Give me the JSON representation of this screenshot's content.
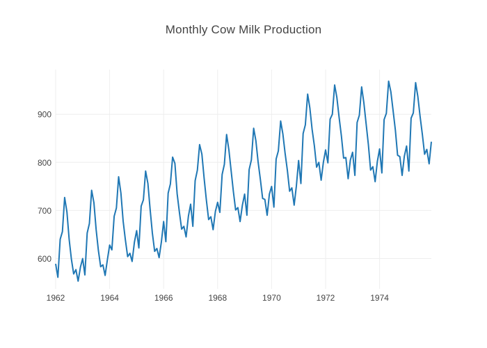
{
  "chart_data": {
    "type": "line",
    "title": "Monthly Cow Milk Production",
    "xlabel": "",
    "ylabel": "",
    "x_start": "1962-01",
    "x_end": "1975-12",
    "xlim_months": [
      0,
      167
    ],
    "ylim": [
      537,
      993
    ],
    "grid": true,
    "legend": false,
    "x_ticks": [
      {
        "label": "1962",
        "month": 0
      },
      {
        "label": "1964",
        "month": 24
      },
      {
        "label": "1966",
        "month": 48
      },
      {
        "label": "1968",
        "month": 72
      },
      {
        "label": "1970",
        "month": 96
      },
      {
        "label": "1972",
        "month": 120
      },
      {
        "label": "1974",
        "month": 144
      }
    ],
    "y_ticks": [
      {
        "label": "600",
        "value": 600
      },
      {
        "label": "700",
        "value": 700
      },
      {
        "label": "800",
        "value": 800
      },
      {
        "label": "900",
        "value": 900
      }
    ],
    "series": [
      {
        "color": "#1f77b4",
        "values": [
          589,
          561,
          640,
          656,
          727,
          697,
          640,
          599,
          568,
          577,
          553,
          582,
          600,
          566,
          653,
          673,
          742,
          716,
          660,
          617,
          583,
          587,
          565,
          598,
          628,
          618,
          688,
          705,
          770,
          736,
          678,
          639,
          604,
          611,
          594,
          634,
          658,
          622,
          709,
          722,
          782,
          756,
          702,
          653,
          615,
          621,
          602,
          635,
          677,
          635,
          736,
          755,
          811,
          798,
          735,
          697,
          661,
          667,
          645,
          688,
          713,
          667,
          762,
          784,
          837,
          817,
          767,
          722,
          681,
          687,
          660,
          698,
          717,
          696,
          775,
          796,
          858,
          826,
          783,
          740,
          701,
          706,
          677,
          711,
          734,
          690,
          785,
          805,
          871,
          845,
          801,
          764,
          725,
          723,
          690,
          734,
          750,
          707,
          807,
          824,
          886,
          859,
          819,
          783,
          740,
          747,
          711,
          751,
          804,
          756,
          860,
          878,
          942,
          913,
          869,
          834,
          790,
          800,
          763,
          800,
          826,
          799,
          890,
          900,
          961,
          935,
          894,
          855,
          809,
          810,
          766,
          805,
          821,
          773,
          883,
          898,
          957,
          924,
          881,
          837,
          784,
          791,
          760,
          802,
          828,
          778,
          889,
          902,
          969,
          947,
          908,
          867,
          815,
          812,
          773,
          813,
          834,
          782,
          892,
          903,
          966,
          937,
          896,
          858,
          817,
          827,
          797,
          843
        ]
      }
    ]
  },
  "colors": {
    "background": "#ffffff",
    "line": "#1f77b4",
    "grid": "#eeeeee",
    "text": "#444444"
  }
}
